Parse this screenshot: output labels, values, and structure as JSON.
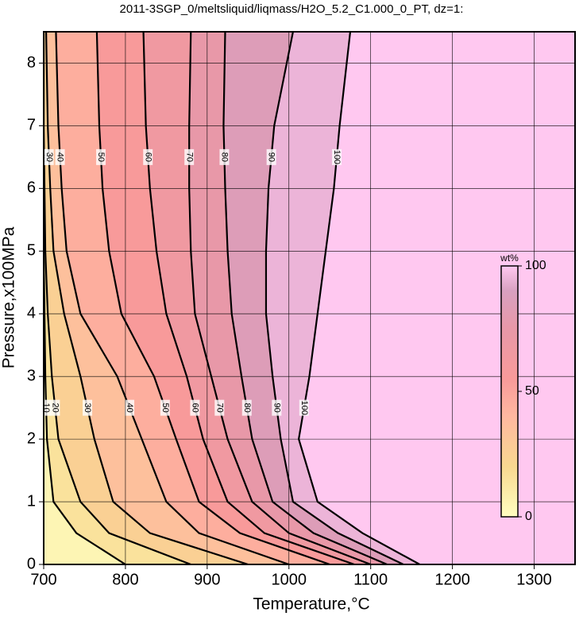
{
  "chart_data": {
    "type": "contour",
    "title": "2011-3SGP_0/meltsliquid/liqmass/H2O_5.2_C1.000_0_PT, dz=1:",
    "x_label": "Temperature,°C",
    "y_label": "Pressure,x100MPa",
    "xlim": [
      700,
      1350
    ],
    "xticks": [
      700,
      800,
      900,
      1000,
      1100,
      1200,
      1300
    ],
    "ylim": [
      0,
      8.5
    ],
    "yticks": [
      0,
      1,
      2,
      3,
      4,
      5,
      6,
      7,
      8
    ],
    "grid": true,
    "background_color": "#ffc8f0",
    "colorscale": [
      [
        0,
        "#ffffc0"
      ],
      [
        20,
        "#f8d890"
      ],
      [
        40,
        "#ffb8a0"
      ],
      [
        55,
        "#f89a9a"
      ],
      [
        75,
        "#e898a8"
      ],
      [
        90,
        "#d8a0c0"
      ],
      [
        100,
        "#ffc8f0"
      ]
    ],
    "contours": [
      {
        "level": 10,
        "x": [
          800,
          740,
          712,
          704,
          702,
          701,
          700,
          700,
          700,
          700
        ],
        "y": [
          0,
          0.5,
          1,
          2,
          3,
          4,
          5,
          6,
          7,
          8.5
        ]
      },
      {
        "level": 20,
        "x": [
          880,
          780,
          745,
          718,
          710,
          705,
          702,
          701,
          700,
          700
        ],
        "y": [
          0,
          0.5,
          1,
          2,
          3,
          4,
          5,
          6,
          7,
          8.5
        ]
      },
      {
        "level": 30,
        "x": [
          950,
          830,
          785,
          762,
          745,
          725,
          712,
          708,
          705,
          703
        ],
        "y": [
          0,
          0.5,
          1,
          2,
          3,
          4,
          5,
          6,
          7,
          8.5
        ]
      },
      {
        "level": 40,
        "x": [
          1000,
          890,
          850,
          820,
          790,
          745,
          728,
          722,
          718,
          715
        ],
        "y": [
          0,
          0.5,
          1,
          2,
          3,
          4,
          5,
          6,
          7,
          8.5
        ]
      },
      {
        "level": 50,
        "x": [
          1050,
          940,
          890,
          862,
          835,
          795,
          780,
          772,
          768,
          765
        ],
        "y": [
          0,
          0.5,
          1,
          2,
          3,
          4,
          5,
          6,
          7,
          8.5
        ]
      },
      {
        "level": 60,
        "x": [
          1080,
          970,
          925,
          895,
          875,
          850,
          838,
          830,
          825,
          822
        ],
        "y": [
          0,
          0.5,
          1,
          2,
          3,
          4,
          5,
          6,
          7,
          8.5
        ]
      },
      {
        "level": 70,
        "x": [
          1100,
          1000,
          955,
          925,
          905,
          885,
          880,
          878,
          878,
          880
        ],
        "y": [
          0,
          0.5,
          1,
          2,
          3,
          4,
          5,
          6,
          7,
          8.5
        ]
      },
      {
        "level": 80,
        "x": [
          1120,
          1030,
          980,
          955,
          942,
          930,
          925,
          922,
          920,
          922
        ],
        "y": [
          0,
          0.5,
          1,
          2,
          3,
          4,
          5,
          6,
          7,
          8.5
        ]
      },
      {
        "level": 90,
        "x": [
          1140,
          1060,
          1005,
          990,
          980,
          972,
          972,
          975,
          982,
          1005
        ],
        "y": [
          0,
          0.5,
          1,
          2,
          3,
          4,
          5,
          6,
          7,
          8.5
        ]
      },
      {
        "level": 100,
        "x": [
          1160,
          1090,
          1035,
          1012,
          1025,
          1035,
          1045,
          1055,
          1062,
          1075
        ],
        "y": [
          0,
          0.5,
          1,
          2,
          3,
          4,
          5,
          6,
          7,
          8.5
        ]
      }
    ],
    "colorbar": {
      "label": "wt%",
      "lim": [
        0,
        100
      ],
      "ticks": [
        0,
        50,
        100
      ]
    }
  }
}
